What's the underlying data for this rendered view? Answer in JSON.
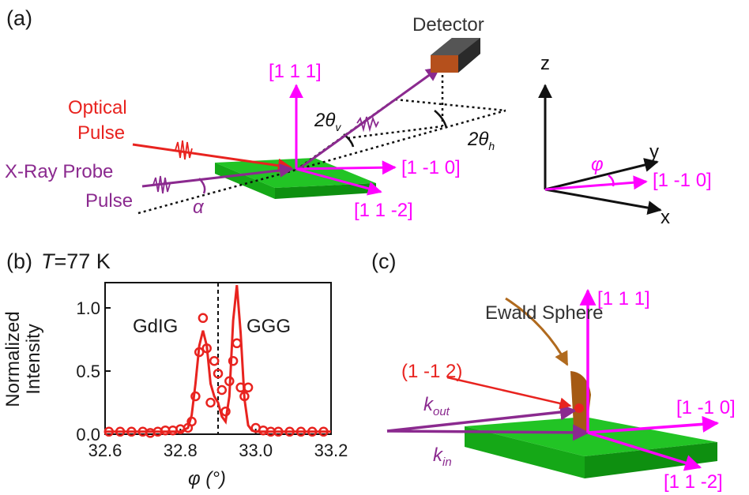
{
  "colors": {
    "magenta": "#ff00ff",
    "purple": "#8b2a8f",
    "red": "#e8231f",
    "green": "#22c425",
    "green_dark": "#0e8f10",
    "black": "#111111",
    "brown": "#b06a1e"
  },
  "panel_a": {
    "label": "(a)",
    "detector": "Detector",
    "optical": [
      "Optical",
      "Pulse"
    ],
    "xray": [
      "X-Ray Probe",
      "Pulse"
    ],
    "dir_111": "[1 1 1]",
    "dir_1m10": "[1 -1 0]",
    "dir_11m2": "[1 1 -2]",
    "two_theta_v": "2θ",
    "two_theta_v_sub": "v",
    "two_theta_h": "2θ",
    "two_theta_h_sub": "h",
    "alpha": "α",
    "coords": {
      "z": "z",
      "y": "y",
      "x": "x",
      "phi": "φ",
      "dir": "[1 -1 0]"
    }
  },
  "panel_b": {
    "label": "(b)",
    "temp_T": "T",
    "temp_rest": "=77 K",
    "region_left": "GdIG",
    "region_right": "GGG"
  },
  "panel_c": {
    "label": "(c)",
    "ewald": "Ewald Sphere",
    "reflection": "(1 -1 2)",
    "kout": "k",
    "kout_sub": "out",
    "kin": "k",
    "kin_sub": "in",
    "dir_111": "[1 1 1]",
    "dir_1m10": "[1 -1 0]",
    "dir_11m2": "[1 1 -2]"
  },
  "chart_data": {
    "type": "scatter",
    "xlabel": "φ (°)",
    "ylabel": "Normalized Intensity",
    "xlim": [
      32.6,
      33.2
    ],
    "ylim": [
      0.0,
      1.2
    ],
    "xticks": [
      32.6,
      32.8,
      33.0,
      33.2
    ],
    "yticks": [
      0.0,
      0.5,
      1.0
    ],
    "xtick_labels": [
      "32.6",
      "32.8",
      "33.0",
      "33.2"
    ],
    "ytick_labels": [
      "0.0",
      "0.5",
      "1.0"
    ],
    "divider_x": 32.9,
    "series": [
      {
        "kind": "points",
        "x": [
          32.61,
          32.64,
          32.67,
          32.7,
          32.72,
          32.74,
          32.76,
          32.78,
          32.8,
          32.82,
          32.83,
          32.84,
          32.85,
          32.86,
          32.87,
          32.88,
          32.89,
          32.9,
          32.91,
          32.92,
          32.93,
          32.94,
          32.95,
          32.96,
          32.97,
          32.98,
          33.0,
          33.02,
          33.04,
          33.06,
          33.09,
          33.12,
          33.15,
          33.18
        ],
        "y": [
          0.02,
          0.02,
          0.02,
          0.02,
          0.01,
          0.02,
          0.03,
          0.03,
          0.04,
          0.05,
          0.1,
          0.3,
          0.65,
          0.92,
          0.68,
          0.25,
          0.58,
          0.48,
          0.35,
          0.18,
          0.42,
          0.58,
          0.72,
          0.37,
          0.3,
          0.37,
          0.05,
          0.03,
          0.02,
          0.02,
          0.02,
          0.02,
          0.02,
          0.02
        ]
      },
      {
        "kind": "fit",
        "x": [
          32.6,
          32.8,
          32.82,
          32.83,
          32.84,
          32.85,
          32.86,
          32.87,
          32.88,
          32.89,
          32.9,
          32.91,
          32.92,
          32.93,
          32.94,
          32.95,
          32.96,
          32.97,
          32.98,
          32.99,
          33.0,
          33.2
        ],
        "y": [
          0.02,
          0.02,
          0.05,
          0.15,
          0.4,
          0.7,
          0.82,
          0.7,
          0.4,
          0.3,
          0.25,
          0.14,
          0.1,
          0.3,
          0.9,
          1.18,
          0.8,
          0.28,
          0.07,
          0.03,
          0.02,
          0.02
        ]
      }
    ]
  }
}
